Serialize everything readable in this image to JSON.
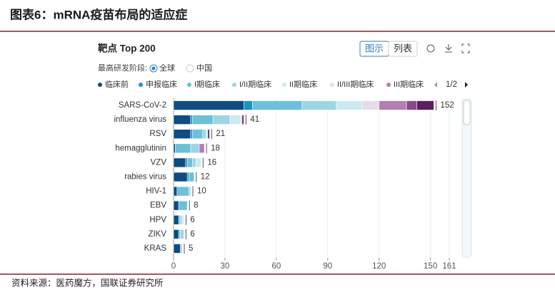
{
  "header": {
    "title": "图表6：mRNA疫苗布局的适应症"
  },
  "footer": "资料来源：医药魔方，国联证券研究所",
  "panel": {
    "title": "靶点 Top 200",
    "tabs": [
      "图示",
      "列表"
    ],
    "filter_label": "最高研发阶段:",
    "filter_options": [
      "全球",
      "中国"
    ],
    "pager": "1/2"
  },
  "chart_data": {
    "type": "stacked_barh",
    "categories": [
      "SARS-CoV-2",
      "influenza virus",
      "RSV",
      "hemagglutinin",
      "VZV",
      "rabies virus",
      "HIV-1",
      "EBV",
      "HPV",
      "ZIKV",
      "KRAS"
    ],
    "series": [
      {
        "name": "临床前",
        "color": "#0f4c81",
        "values": [
          41,
          10,
          10,
          1,
          7,
          8,
          2,
          3,
          3,
          3,
          4
        ]
      },
      {
        "name": "申报临床",
        "color": "#1b94c0",
        "values": [
          5,
          1,
          1,
          0,
          1,
          1,
          0,
          0,
          0,
          0,
          0
        ]
      },
      {
        "name": "I期临床",
        "color": "#6cc0d8",
        "values": [
          29,
          12,
          6,
          9,
          3,
          3,
          7,
          5,
          1,
          1,
          0
        ]
      },
      {
        "name": "I/II期临床",
        "color": "#9dd5e4",
        "values": [
          20,
          10,
          2,
          5,
          2,
          0,
          1,
          0,
          1,
          2,
          1
        ]
      },
      {
        "name": "II期临床",
        "color": "#cbe9f1",
        "values": [
          15,
          6,
          1,
          0,
          3,
          0,
          0,
          0,
          1,
          0,
          0
        ]
      },
      {
        "name": "II/III期临床",
        "color": "#e6dcea",
        "values": [
          10,
          1,
          0,
          0,
          0,
          0,
          0,
          0,
          0,
          0,
          0
        ]
      },
      {
        "name": "III期临床",
        "color": "#b27eb3",
        "values": [
          16,
          0,
          0,
          3,
          0,
          0,
          0,
          0,
          0,
          0,
          0
        ]
      },
      {
        "color": "#8a4a8c",
        "values": [
          6,
          0,
          0,
          0,
          0,
          0,
          0,
          0,
          0,
          0,
          0
        ]
      },
      {
        "color": "#5b1e5e",
        "values": [
          10,
          1,
          1,
          0,
          0,
          0,
          0,
          0,
          0,
          0,
          0
        ]
      }
    ],
    "totals": [
      152,
      41,
      21,
      18,
      16,
      12,
      10,
      8,
      6,
      6,
      5
    ],
    "xlim": [
      0,
      161
    ],
    "xticks": [
      0,
      30,
      60,
      90,
      120,
      150,
      161
    ],
    "grid": true
  }
}
